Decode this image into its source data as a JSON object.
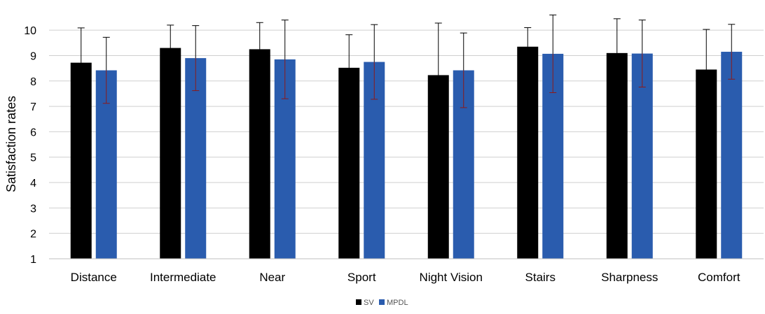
{
  "chart_data": {
    "type": "bar",
    "title": "",
    "xlabel": "",
    "ylabel": "Satisfaction rates",
    "ylim": [
      1,
      10.5
    ],
    "yticks": [
      1,
      2,
      3,
      4,
      5,
      6,
      7,
      8,
      9,
      10
    ],
    "grid": true,
    "legend_position": "bottom-center",
    "categories": [
      "Distance",
      "Intermediate",
      "Near",
      "Sport",
      "Night Vision",
      "Stairs",
      "Sharpness",
      "Comfort"
    ],
    "series": [
      {
        "name": "SV",
        "color": "#000000",
        "values": [
          8.72,
          9.3,
          9.25,
          8.52,
          8.23,
          9.35,
          9.1,
          8.45
        ],
        "error": [
          1.37,
          0.9,
          1.05,
          1.3,
          2.05,
          0.75,
          1.35,
          1.58
        ]
      },
      {
        "name": "MPDL",
        "color": "#2a5cae",
        "values": [
          8.42,
          8.9,
          8.85,
          8.75,
          8.42,
          9.07,
          9.08,
          9.15
        ],
        "error": [
          1.3,
          1.28,
          1.55,
          1.47,
          1.47,
          1.53,
          1.32,
          1.08
        ]
      }
    ]
  }
}
